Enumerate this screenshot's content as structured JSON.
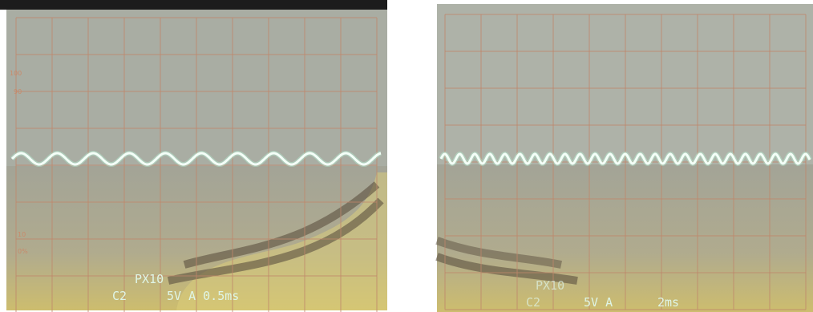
{
  "left_screen": {
    "graticule_marks": [
      "100",
      "90",
      "10",
      "0%"
    ],
    "probe": "PX10",
    "channel": "C2",
    "settings": "5V A 0.5ms"
  },
  "right_screen": {
    "probe": "PX10",
    "channel": "C2",
    "settings": "5V A",
    "timebase": "2ms"
  }
}
